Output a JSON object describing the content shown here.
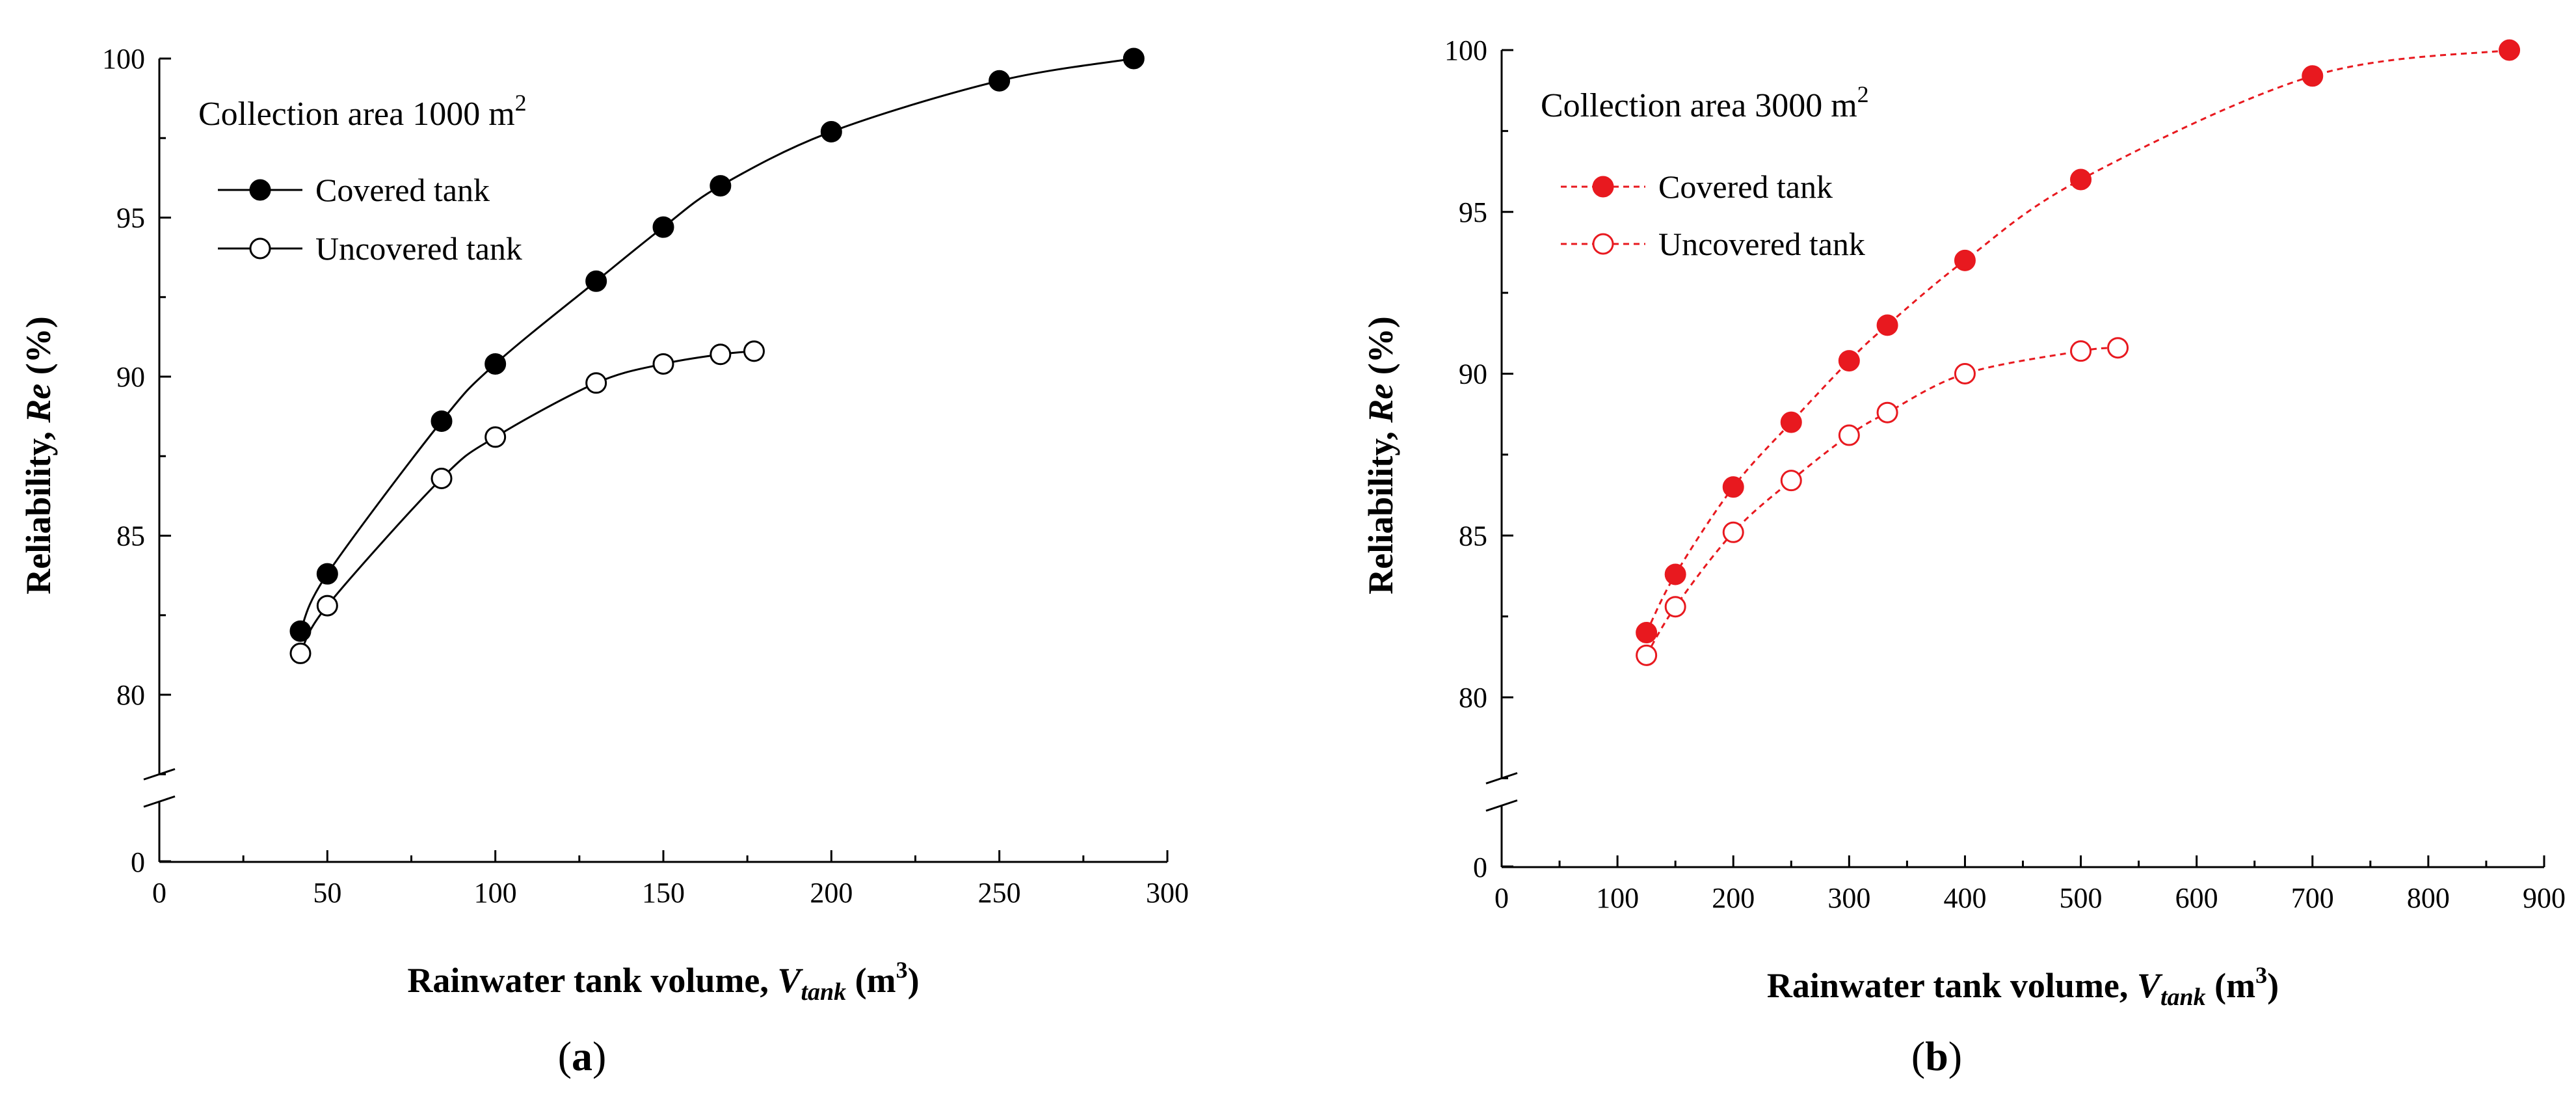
{
  "chart_data": [
    {
      "type": "line",
      "panel_label": "a",
      "annotation": {
        "text": "Collection area 1000 m",
        "superscript": "2"
      },
      "xlabel": {
        "main": "Rainwater tank volume, ",
        "italic": "V",
        "sub": "tank",
        "unit_open": " (m",
        "unit_sup": "3",
        "unit_close": ")"
      },
      "ylabel": {
        "main": "Reliability, ",
        "italic": "Re",
        "unit": " (%)"
      },
      "xlim": [
        0,
        300
      ],
      "xticks": [
        0,
        50,
        100,
        150,
        200,
        250,
        300
      ],
      "yticks": [
        80,
        85,
        90,
        95,
        100
      ],
      "ybreak_tick": 0,
      "ylim_upper": [
        77.5,
        100
      ],
      "color": "#000000",
      "line_style": "solid",
      "series": [
        {
          "name": "Covered tank",
          "marker": "filled-circle",
          "x": [
            42,
            50,
            84,
            100,
            130,
            150,
            167,
            200,
            250,
            290
          ],
          "y": [
            82.0,
            83.8,
            88.6,
            90.4,
            93.0,
            94.7,
            96.0,
            97.7,
            99.3,
            100.0
          ]
        },
        {
          "name": "Uncovered tank",
          "marker": "open-circle",
          "x": [
            42,
            50,
            84,
            100,
            130,
            150,
            167,
            177
          ],
          "y": [
            81.3,
            82.8,
            86.8,
            88.1,
            89.8,
            90.4,
            90.7,
            90.8
          ]
        }
      ]
    },
    {
      "type": "line",
      "panel_label": "b",
      "annotation": {
        "text": "Collection area 3000 m",
        "superscript": "2"
      },
      "xlabel": {
        "main": "Rainwater tank volume, ",
        "italic": "V",
        "sub": "tank",
        "unit_open": " (m",
        "unit_sup": "3",
        "unit_close": ")"
      },
      "ylabel": {
        "main": "Reliability, ",
        "italic": "Re",
        "unit": " (%)"
      },
      "xlim": [
        0,
        900
      ],
      "xticks": [
        0,
        100,
        200,
        300,
        400,
        500,
        600,
        700,
        800,
        900
      ],
      "yticks": [
        80,
        85,
        90,
        95,
        100
      ],
      "ybreak_tick": 0,
      "ylim_upper": [
        77.5,
        100
      ],
      "color": "#e8191f",
      "line_style": "dashed",
      "series": [
        {
          "name": "Covered tank",
          "marker": "filled-circle",
          "x": [
            125,
            150,
            200,
            250,
            300,
            333,
            400,
            500,
            700,
            870
          ],
          "y": [
            82.0,
            83.8,
            86.5,
            88.5,
            90.4,
            91.5,
            93.5,
            96.0,
            99.2,
            100.0
          ]
        },
        {
          "name": "Uncovered tank",
          "marker": "open-circle",
          "x": [
            125,
            150,
            200,
            250,
            300,
            333,
            400,
            500,
            532
          ],
          "y": [
            81.3,
            82.8,
            85.1,
            86.7,
            88.1,
            88.8,
            90.0,
            90.7,
            90.8
          ]
        }
      ]
    }
  ]
}
